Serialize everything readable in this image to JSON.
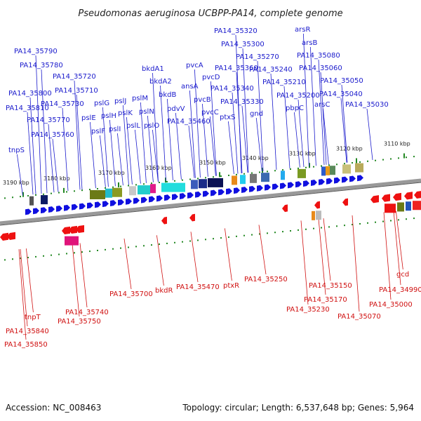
{
  "title": "Pseudomonas aeruginosa UCBPP-PA14, complete genome",
  "footer": {
    "accession": "Accession: NC_008463",
    "summary": "Topology: circular; Length: 6,537,648 bp; Genes: 5,964"
  },
  "colors": {
    "forward_label": "#1a1acc",
    "reverse_label": "#d01010",
    "forward_arrow": "#1010e0",
    "reverse_arrow": "#ee1111",
    "backbone": "#888888",
    "tick": "#228822"
  },
  "ticks": [
    "3190 kbp",
    "3180 kbp",
    "3170 kbp",
    "3160 kbp",
    "3150 kbp",
    "3140 kbp",
    "3130 kbp",
    "3120 kbp",
    "3110 kbp"
  ],
  "forward_labels": [
    "PA14_35320",
    "arsR",
    "PA14_35300",
    "arsB",
    "PA14_35790",
    "PA14_35270",
    "PA14_35080",
    "PA14_35780",
    "PA14_35360",
    "PA14_35240",
    "PA14_35060",
    "PA14_35720",
    "bkdA1",
    "pvcA",
    "PA14_35210",
    "PA14_35050",
    "PA14_35710",
    "ansA",
    "pvcD",
    "PA14_35340",
    "PA14_35800",
    "PA14_35730",
    "bkdA2",
    "bkdB",
    "pvcB",
    "PA14_35330",
    "PA14_35200",
    "PA14_35040",
    "PA14_35810",
    "pslG",
    "pslJ",
    "pslM",
    "arsC",
    "PA14_35030",
    "pvcC",
    "gnd",
    "pbpC",
    "PA14_35770",
    "pslE",
    "pslH",
    "pslK",
    "pslN",
    "pdvV",
    "ptxS",
    "PA14_35760",
    "pslF",
    "pslI",
    "pslL",
    "pslO",
    "PA14_35460",
    "tnpS"
  ],
  "reverse_labels": [
    "gcd",
    "PA14_35250",
    "PA14_35700",
    "bkdR",
    "PA14_35470",
    "ptxR",
    "PA14_35150",
    "PA14_34990",
    "PA14_35740",
    "PA14_35170",
    "PA14_35000",
    "tnpT",
    "PA14_35230",
    "PA14_35750",
    "PA14_35070",
    "PA14_35840",
    "PA14_35850"
  ]
}
